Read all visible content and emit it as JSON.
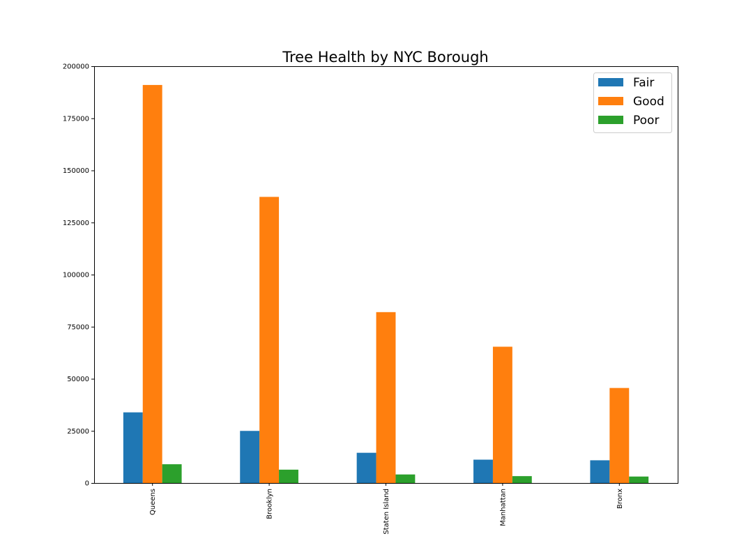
{
  "chart_data": {
    "type": "bar",
    "title": "Tree Health by NYC Borough",
    "xlabel": "",
    "ylabel": "",
    "categories": [
      "Queens",
      "Brooklyn",
      "Staten Island",
      "Manhattan",
      "Bronx"
    ],
    "series": [
      {
        "name": "Fair",
        "color": "#1f77b4",
        "values": [
          33900,
          25000,
          14500,
          11200,
          10900
        ]
      },
      {
        "name": "Good",
        "color": "#ff7f0e",
        "values": [
          191000,
          137300,
          82000,
          65400,
          45600
        ]
      },
      {
        "name": "Poor",
        "color": "#2ca02c",
        "values": [
          9000,
          6400,
          4100,
          3300,
          3100
        ]
      }
    ],
    "ylim": [
      0,
      200000
    ],
    "yticks": [
      "0",
      "25000",
      "50000",
      "75000",
      "100000",
      "125000",
      "150000",
      "175000",
      "200000"
    ],
    "xtick_rotation": "vertical",
    "grid": false,
    "legend_position": "top-right"
  }
}
